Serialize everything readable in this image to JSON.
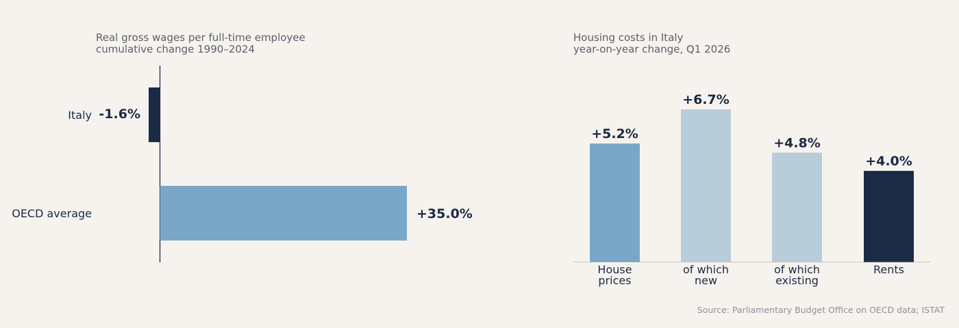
{
  "chart_data": [
    {
      "type": "bar",
      "orientation": "horizontal",
      "title": "Real gross wages per full-time employee",
      "subtitle": "cumulative change 1990–2024",
      "categories": [
        "Italy",
        "OECD average"
      ],
      "values": [
        -1.6,
        35.0
      ],
      "value_labels": [
        "-1.6%",
        "+35.0%"
      ],
      "colors": [
        "#1b2b45",
        "#7aa7c7"
      ],
      "xlim": [
        -1.6,
        35.0
      ],
      "grid": false
    },
    {
      "type": "bar",
      "orientation": "vertical",
      "title": "Housing costs in Italy",
      "subtitle": "year-on-year change, Q1 2026",
      "categories": [
        [
          "House",
          "prices"
        ],
        [
          "of which",
          "new"
        ],
        [
          "of which",
          "existing"
        ],
        [
          "Rents"
        ]
      ],
      "values": [
        5.2,
        6.7,
        4.8,
        4.0
      ],
      "value_labels": [
        "+5.2%",
        "+6.7%",
        "+4.8%",
        "+4.0%"
      ],
      "colors": [
        "#7aa7c7",
        "#b9ccd9",
        "#b9ccd9",
        "#1b2b45"
      ],
      "ylim": [
        0,
        6.7
      ],
      "grid": false
    }
  ],
  "footer": {
    "source": "Source: Parliamentary Budget Office on OECD data; ISTAT"
  }
}
